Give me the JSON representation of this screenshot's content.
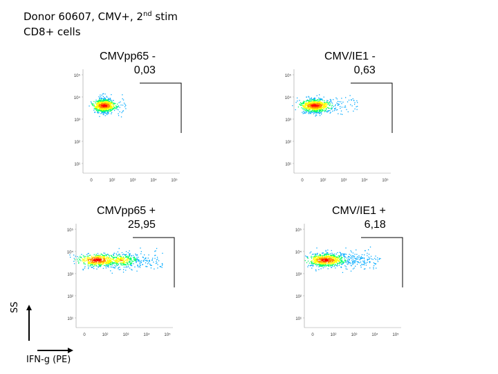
{
  "header": {
    "line1_prefix": "Donor 60607, CMV+, 2",
    "line1_sup": "nd",
    "line1_suffix": " stim",
    "line2": "CD8+ cells"
  },
  "axes": {
    "y_label": "SS",
    "x_label": "IFN-g (PE)",
    "y_ticks": [
      "10⁵",
      "10⁴",
      "10³",
      "10²",
      "10¹"
    ],
    "x_ticks": [
      "0",
      "10²",
      "10³",
      "10⁴",
      "10⁵"
    ]
  },
  "panels": [
    {
      "name": "CMVpp65 -",
      "value": "0,03",
      "spread": 0.15,
      "second_cluster": 0
    },
    {
      "name": "CMV/IE1 -",
      "value": "0,63",
      "spread": 0.55,
      "second_cluster": 0
    },
    {
      "name": "CMVpp65 +",
      "value": "25,95",
      "spread": 1.0,
      "second_cluster": 1
    },
    {
      "name": "CMV/IE1 +",
      "value": "6,18",
      "spread": 0.8,
      "second_cluster": 0.3
    }
  ]
}
